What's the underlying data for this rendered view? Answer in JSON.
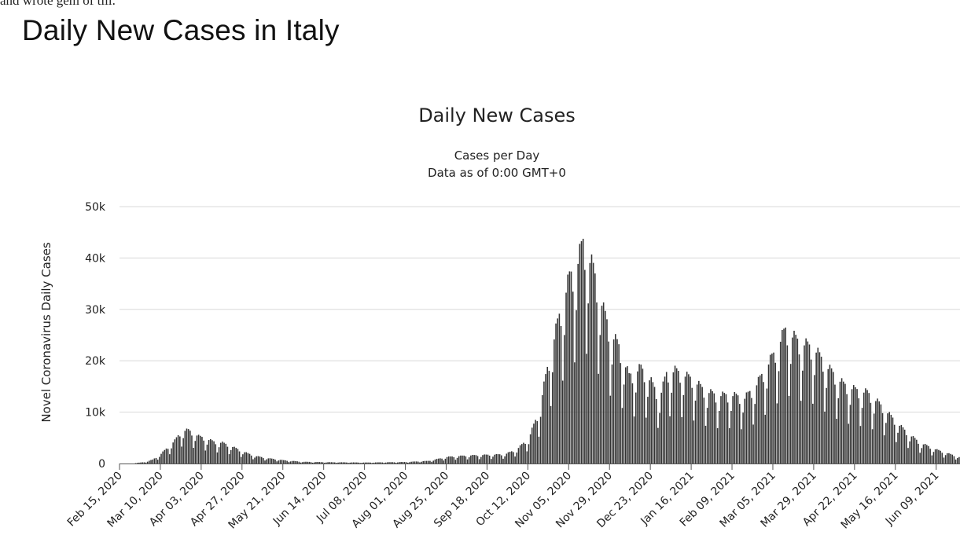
{
  "page": {
    "cropped_text": "and wrote gem of till.",
    "heading": "Daily New Cases in Italy"
  },
  "colors": {
    "bar": "#333333",
    "grid": "#d8d8d8",
    "text": "#222222"
  },
  "chart_data": {
    "type": "bar",
    "title": "Daily New Cases",
    "subtitle_lines": [
      "Cases per Day",
      "Data as of 0:00 GMT+0"
    ],
    "ylabel": "Novel Coronavirus Daily Cases",
    "xlabel": "",
    "ylim": [
      0,
      50000
    ],
    "y_ticks": [
      {
        "value": 0,
        "label": "0"
      },
      {
        "value": 10000,
        "label": "10k"
      },
      {
        "value": 20000,
        "label": "20k"
      },
      {
        "value": 30000,
        "label": "30k"
      },
      {
        "value": 40000,
        "label": "40k"
      },
      {
        "value": 50000,
        "label": "50k"
      }
    ],
    "x_start": "2020-02-15",
    "x_end": "2021-06-22",
    "x_ticks": [
      {
        "date": "2020-02-15",
        "label": "Feb 15, 2020"
      },
      {
        "date": "2020-03-10",
        "label": "Mar 10, 2020"
      },
      {
        "date": "2020-04-03",
        "label": "Apr 03, 2020"
      },
      {
        "date": "2020-04-27",
        "label": "Apr 27, 2020"
      },
      {
        "date": "2020-05-21",
        "label": "May 21, 2020"
      },
      {
        "date": "2020-06-14",
        "label": "Jun 14, 2020"
      },
      {
        "date": "2020-07-08",
        "label": "Jul 08, 2020"
      },
      {
        "date": "2020-08-01",
        "label": "Aug 01, 2020"
      },
      {
        "date": "2020-08-25",
        "label": "Aug 25, 2020"
      },
      {
        "date": "2020-09-18",
        "label": "Sep 18, 2020"
      },
      {
        "date": "2020-10-12",
        "label": "Oct 12, 2020"
      },
      {
        "date": "2020-11-05",
        "label": "Nov 05, 2020"
      },
      {
        "date": "2020-11-29",
        "label": "Nov 29, 2020"
      },
      {
        "date": "2020-12-23",
        "label": "Dec 23, 2020"
      },
      {
        "date": "2021-01-16",
        "label": "Jan 16, 2021"
      },
      {
        "date": "2021-02-09",
        "label": "Feb 09, 2021"
      },
      {
        "date": "2021-03-05",
        "label": "Mar 05, 2021"
      },
      {
        "date": "2021-03-29",
        "label": "Mar 29, 2021"
      },
      {
        "date": "2021-04-22",
        "label": "Apr 22, 2021"
      },
      {
        "date": "2021-05-16",
        "label": "May 16, 2021"
      },
      {
        "date": "2021-06-09",
        "label": "Jun 09, 2021"
      }
    ],
    "series": [
      {
        "points": [
          [
            "2020-02-15",
            0
          ],
          [
            "2020-02-22",
            20
          ],
          [
            "2020-02-29",
            250
          ],
          [
            "2020-03-05",
            700
          ],
          [
            "2020-03-10",
            1800
          ],
          [
            "2020-03-14",
            3000
          ],
          [
            "2020-03-18",
            4200
          ],
          [
            "2020-03-22",
            6000
          ],
          [
            "2020-03-26",
            6100
          ],
          [
            "2020-04-01",
            5000
          ],
          [
            "2020-04-05",
            4600
          ],
          [
            "2020-04-10",
            4000
          ],
          [
            "2020-04-15",
            3800
          ],
          [
            "2020-04-20",
            3200
          ],
          [
            "2020-04-27",
            2200
          ],
          [
            "2020-05-04",
            1400
          ],
          [
            "2020-05-11",
            1000
          ],
          [
            "2020-05-21",
            600
          ],
          [
            "2020-06-01",
            320
          ],
          [
            "2020-06-14",
            250
          ],
          [
            "2020-07-08",
            180
          ],
          [
            "2020-08-01",
            280
          ],
          [
            "2020-08-14",
            480
          ],
          [
            "2020-08-25",
            1200
          ],
          [
            "2020-09-05",
            1450
          ],
          [
            "2020-09-18",
            1600
          ],
          [
            "2020-09-28",
            1700
          ],
          [
            "2020-10-05",
            2600
          ],
          [
            "2020-10-12",
            4600
          ],
          [
            "2020-10-18",
            9500
          ],
          [
            "2020-10-24",
            19000
          ],
          [
            "2020-10-30",
            27000
          ],
          [
            "2020-11-05",
            34000
          ],
          [
            "2020-11-10",
            37000
          ],
          [
            "2020-11-13",
            40500
          ],
          [
            "2020-11-19",
            35500
          ],
          [
            "2020-11-25",
            28000
          ],
          [
            "2020-11-29",
            24000
          ],
          [
            "2020-12-04",
            21500
          ],
          [
            "2020-12-10",
            16000
          ],
          [
            "2020-12-17",
            17500
          ],
          [
            "2020-12-23",
            15000
          ],
          [
            "2020-12-28",
            12000
          ],
          [
            "2021-01-01",
            16500
          ],
          [
            "2021-01-06",
            17000
          ],
          [
            "2021-01-16",
            15500
          ],
          [
            "2021-01-23",
            13500
          ],
          [
            "2021-01-30",
            12500
          ],
          [
            "2021-02-09",
            12500
          ],
          [
            "2021-02-16",
            12000
          ],
          [
            "2021-02-23",
            14500
          ],
          [
            "2021-03-05",
            20000
          ],
          [
            "2021-03-12",
            24500
          ],
          [
            "2021-03-19",
            22500
          ],
          [
            "2021-03-29",
            21000
          ],
          [
            "2021-04-06",
            17500
          ],
          [
            "2021-04-15",
            14500
          ],
          [
            "2021-04-22",
            13500
          ],
          [
            "2021-04-29",
            13000
          ],
          [
            "2021-05-06",
            11000
          ],
          [
            "2021-05-16",
            7600
          ],
          [
            "2021-05-23",
            5500
          ],
          [
            "2021-05-30",
            3800
          ],
          [
            "2021-06-09",
            2500
          ],
          [
            "2021-06-16",
            1800
          ],
          [
            "2021-06-22",
            1200
          ]
        ]
      }
    ]
  }
}
